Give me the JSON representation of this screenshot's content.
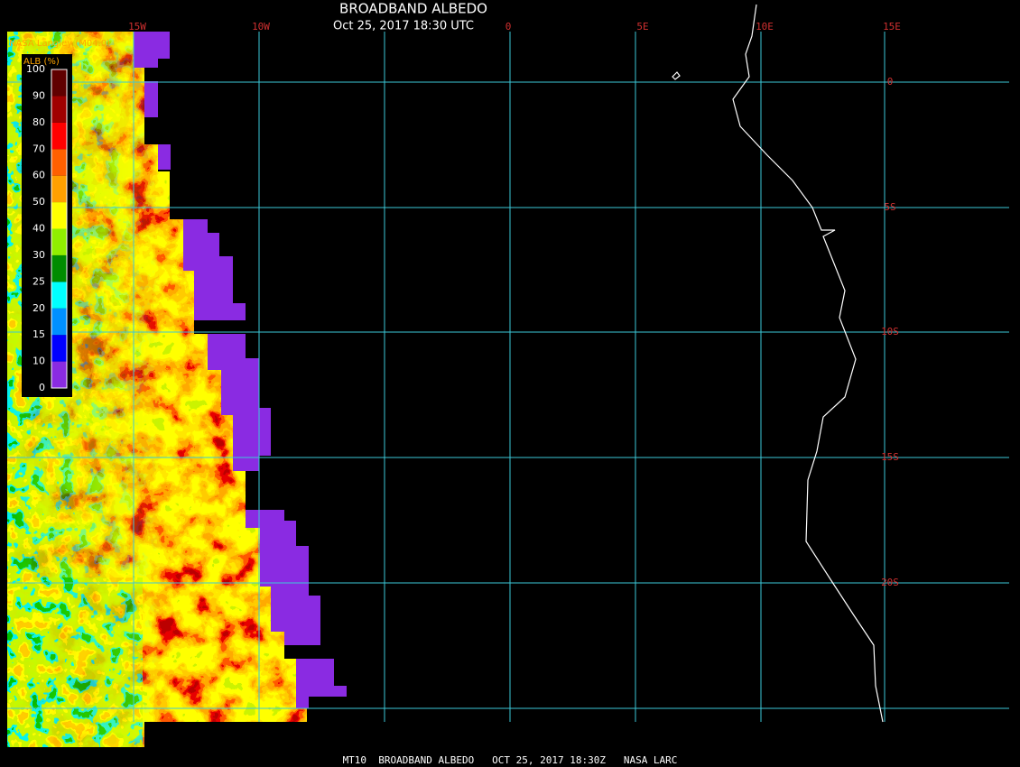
{
  "header": {
    "title": "BROADBAND ALBEDO",
    "subtitle": "Oct 25, 2017 18:30 UTC",
    "source": "NASA Langley (M04.0)"
  },
  "legend": {
    "title": "ALB (%)",
    "ticks": [
      0,
      10,
      15,
      20,
      25,
      30,
      40,
      50,
      60,
      70,
      80,
      90,
      100
    ],
    "colors": [
      "#8a2be2",
      "#0000ff",
      "#0090ff",
      "#00ffff",
      "#008c00",
      "#90ee00",
      "#ffff00",
      "#ffa000",
      "#ff6000",
      "#ff0000",
      "#a00000",
      "#600000"
    ]
  },
  "grid": {
    "longitudes": [
      "15W",
      "10W",
      "0",
      "5E",
      "10E",
      "15E"
    ],
    "latitudes": [
      "0",
      "5S",
      "10S",
      "15S",
      "20S"
    ]
  },
  "footer": "MT10  BROADBAND ALBEDO   OCT 25, 2017 18:30Z   NASA LARC"
}
